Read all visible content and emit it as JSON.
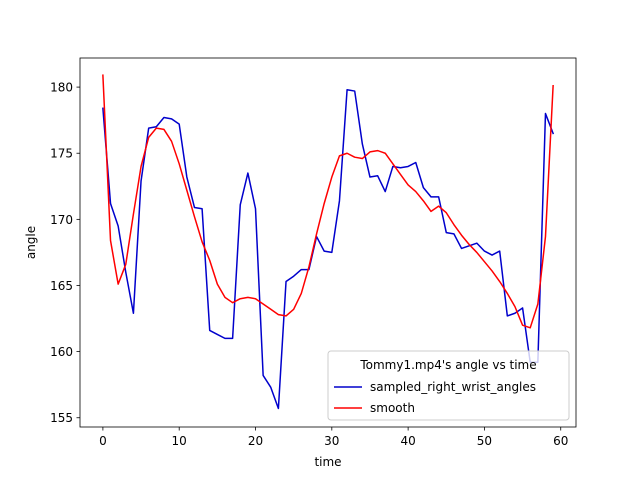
{
  "chart_data": {
    "type": "line",
    "xlabel": "time",
    "ylabel": "angle",
    "xlim": [
      -3,
      62
    ],
    "ylim": [
      154.3,
      182.2
    ],
    "xticks": [
      0,
      10,
      20,
      30,
      40,
      50,
      60
    ],
    "yticks": [
      155,
      160,
      165,
      170,
      175,
      180
    ],
    "grid": false,
    "legend": {
      "title": "Tommy1.mp4's angle vs time",
      "placement": "lower-right"
    },
    "series": [
      {
        "name": "sampled_right_wrist_angles",
        "color": "#0000cc",
        "x": [
          0,
          1,
          2,
          3,
          4,
          5,
          6,
          7,
          8,
          9,
          10,
          11,
          12,
          13,
          14,
          15,
          16,
          17,
          18,
          19,
          20,
          21,
          22,
          23,
          24,
          25,
          26,
          27,
          28,
          29,
          30,
          31,
          32,
          33,
          34,
          35,
          36,
          37,
          38,
          39,
          40,
          41,
          42,
          43,
          44,
          45,
          46,
          47,
          48,
          49,
          50,
          51,
          52,
          53,
          54,
          55,
          56,
          57,
          58,
          59
        ],
        "y": [
          178.4,
          171.2,
          169.5,
          166.0,
          162.9,
          172.9,
          176.9,
          177.0,
          177.7,
          177.6,
          177.2,
          173.2,
          170.9,
          170.8,
          161.6,
          161.3,
          161.0,
          161.0,
          171.1,
          173.5,
          170.8,
          158.2,
          157.3,
          155.7,
          165.3,
          165.7,
          166.2,
          166.2,
          168.7,
          167.6,
          167.5,
          171.4,
          179.8,
          179.7,
          175.7,
          173.2,
          173.3,
          172.1,
          174.0,
          173.9,
          174.0,
          174.3,
          172.4,
          171.7,
          171.7,
          169.0,
          168.9,
          167.8,
          168.0,
          168.2,
          167.6,
          167.3,
          167.6,
          162.7,
          162.9,
          163.3,
          159.2,
          159.2,
          178.0,
          176.5
        ]
      },
      {
        "name": "smooth",
        "color": "#ff0000",
        "x": [
          0,
          1,
          2,
          3,
          4,
          5,
          6,
          7,
          8,
          9,
          10,
          11,
          12,
          13,
          14,
          15,
          16,
          17,
          18,
          19,
          20,
          21,
          22,
          23,
          24,
          25,
          26,
          27,
          28,
          29,
          30,
          31,
          32,
          33,
          34,
          35,
          36,
          37,
          38,
          39,
          40,
          41,
          42,
          43,
          44,
          45,
          46,
          47,
          48,
          49,
          50,
          51,
          52,
          53,
          54,
          55,
          56,
          57,
          58,
          59
        ],
        "y": [
          180.9,
          168.4,
          165.1,
          166.6,
          170.4,
          174.0,
          176.2,
          176.9,
          176.8,
          175.9,
          174.2,
          172.2,
          170.2,
          168.3,
          166.9,
          165.1,
          164.1,
          163.7,
          164.0,
          164.1,
          164.0,
          163.6,
          163.2,
          162.8,
          162.7,
          163.2,
          164.4,
          166.4,
          168.9,
          171.2,
          173.2,
          174.8,
          175.0,
          174.7,
          174.6,
          175.1,
          175.2,
          175.0,
          174.2,
          173.4,
          172.6,
          172.1,
          171.4,
          170.6,
          171.0,
          170.5,
          169.6,
          168.8,
          168.1,
          167.5,
          166.8,
          166.1,
          165.3,
          164.4,
          163.4,
          162.0,
          161.8,
          163.6,
          168.7,
          180.1
        ]
      }
    ]
  }
}
